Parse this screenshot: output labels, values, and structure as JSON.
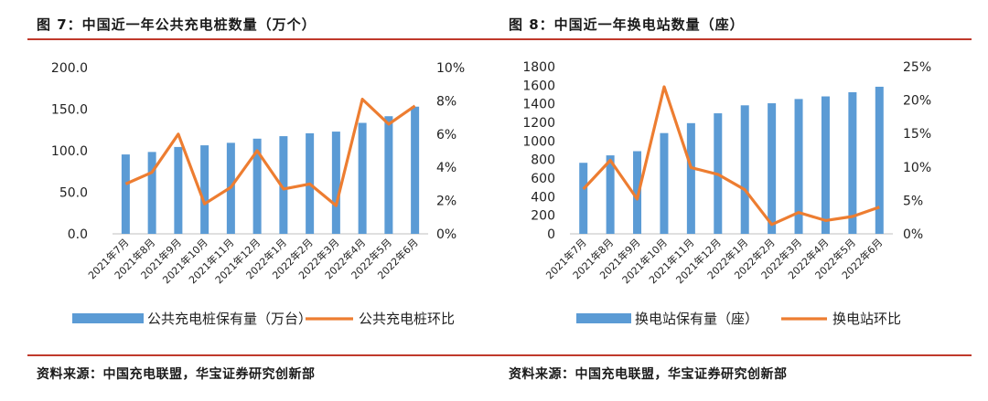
{
  "left": {
    "title": "图 7：中国近一年公共充电桩数量（万个）",
    "source": "资料来源：中国充电联盟，华宝证券研究创新部"
  },
  "right": {
    "title": "图 8：中国近一年换电站数量（座）",
    "source": "资料来源：中国充电联盟，华宝证券研究创新部"
  },
  "colors": {
    "bar": "#5b9bd5",
    "line": "#ed7d31",
    "rule": "#c0392b"
  },
  "chart_data": [
    {
      "type": "bar",
      "categories": [
        "2021年7月",
        "2021年8月",
        "2021年9月",
        "2021年10月",
        "2021年11月",
        "2021年12月",
        "2022年1月",
        "2022年2月",
        "2022年3月",
        "2022年4月",
        "2022年5月",
        "2022年6月"
      ],
      "series": [
        {
          "name": "公共充电桩保有量（万台）",
          "type": "bar",
          "axis": "left",
          "values": [
            95.5,
            98.5,
            104.5,
            106.5,
            109.5,
            114.5,
            117.5,
            121.0,
            123.0,
            133.5,
            141.5,
            153.0
          ]
        },
        {
          "name": "公共充电桩环比",
          "type": "line",
          "axis": "right",
          "values": [
            3.0,
            3.7,
            6.0,
            1.8,
            2.8,
            5.0,
            2.7,
            3.0,
            1.7,
            8.1,
            6.6,
            7.7
          ]
        }
      ],
      "y_left": {
        "min": 0,
        "max": 200,
        "ticks": [
          "0.0",
          "50.0",
          "100.0",
          "150.0",
          "200.0"
        ]
      },
      "y_right": {
        "min": 0,
        "max": 10,
        "ticks": [
          "0%",
          "2%",
          "4%",
          "6%",
          "8%",
          "10%"
        ]
      },
      "legend_position": "bottom"
    },
    {
      "type": "bar",
      "categories": [
        "2021年7月",
        "2021年8月",
        "2021年9月",
        "2021年10月",
        "2021年11月",
        "2021年12月",
        "2022年1月",
        "2022年2月",
        "2022年3月",
        "2022年4月",
        "2022年5月",
        "2022年6月"
      ],
      "series": [
        {
          "name": "换电站保有量（座）",
          "type": "bar",
          "axis": "left",
          "values": [
            765,
            845,
            890,
            1085,
            1192,
            1298,
            1384,
            1406,
            1452,
            1480,
            1525,
            1584
          ]
        },
        {
          "name": "换电站环比",
          "type": "line",
          "axis": "right",
          "values": [
            6.7,
            11.0,
            5.2,
            22.0,
            9.9,
            8.9,
            6.6,
            1.4,
            3.2,
            2.0,
            2.6,
            4.0
          ]
        }
      ],
      "y_left": {
        "min": 0,
        "max": 1800,
        "ticks": [
          "0",
          "200",
          "400",
          "600",
          "800",
          "1000",
          "1200",
          "1400",
          "1600",
          "1800"
        ]
      },
      "y_right": {
        "min": 0,
        "max": 25,
        "ticks": [
          "0%",
          "5%",
          "10%",
          "15%",
          "20%",
          "25%"
        ]
      },
      "legend_position": "bottom"
    }
  ]
}
